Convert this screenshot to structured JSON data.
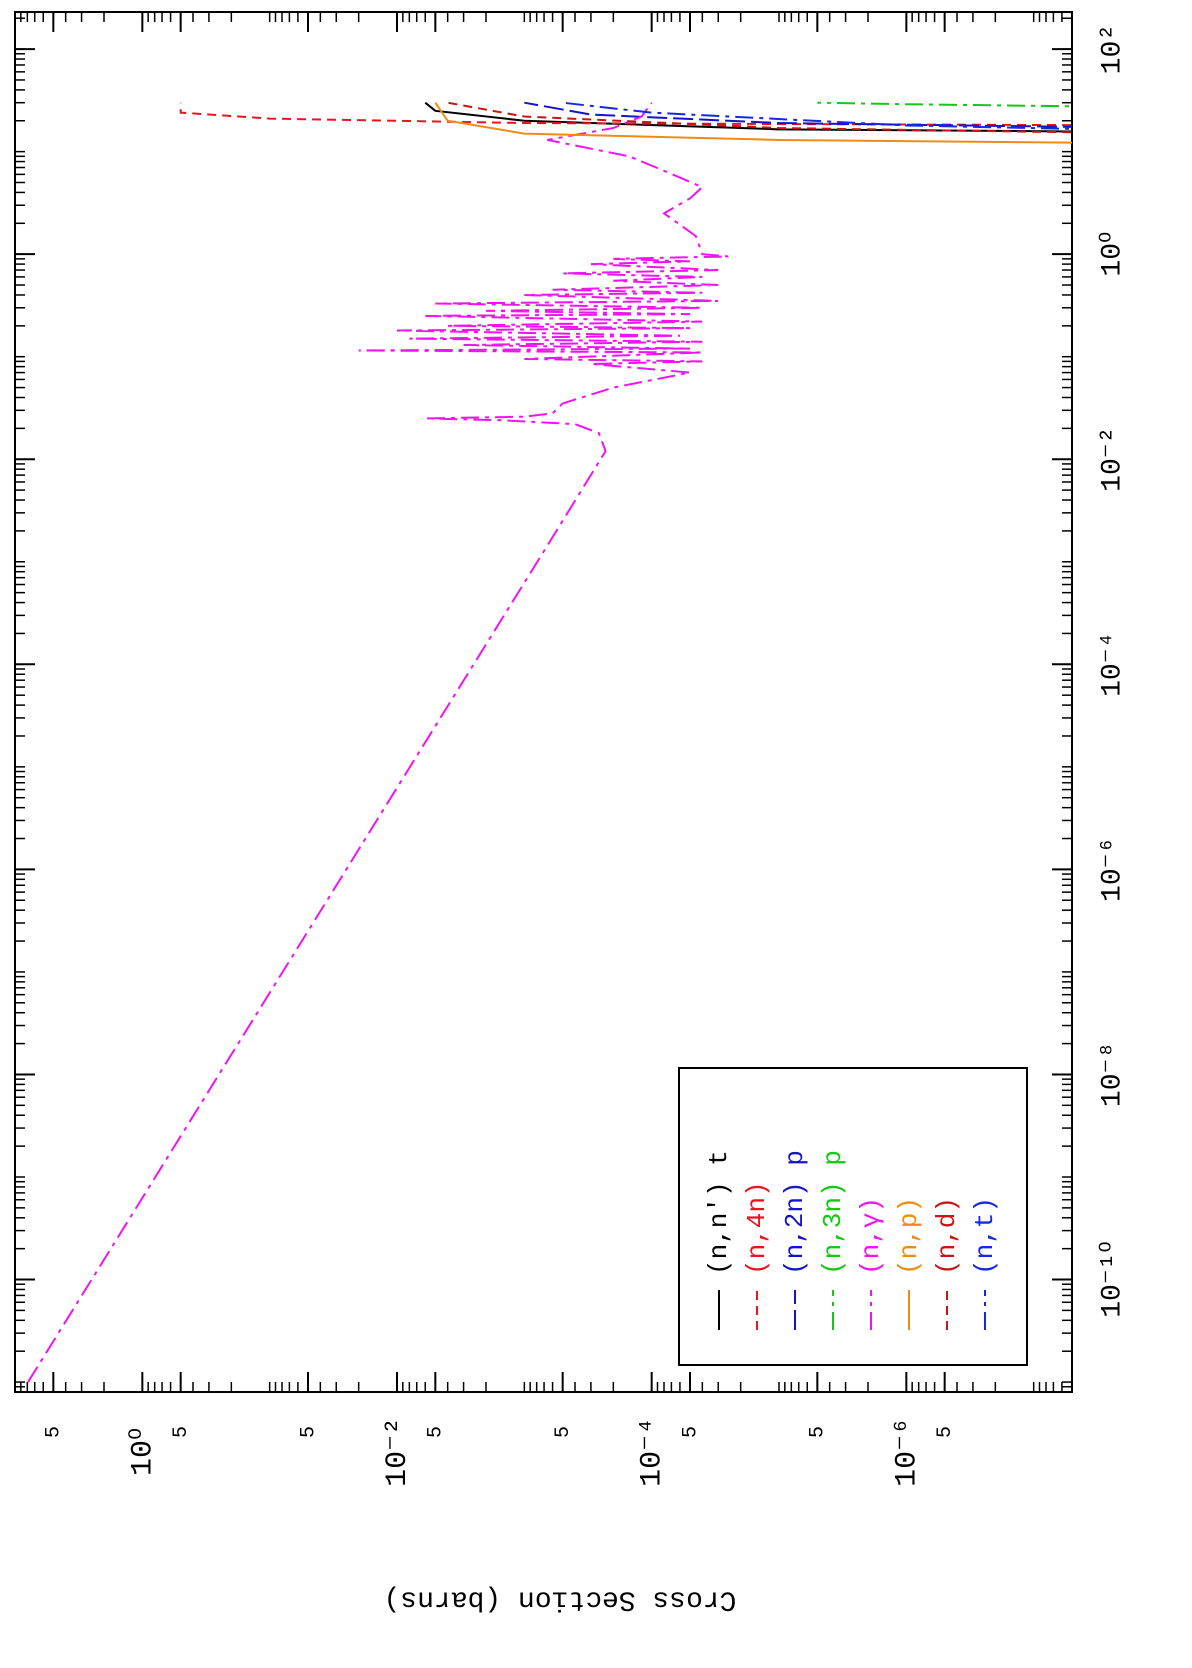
{
  "chart_data": {
    "type": "line",
    "ylabel": "Cross Section (barns)",
    "xlog": true,
    "ylog": true,
    "minor_ticks": true,
    "xlim": [
      8e-12,
      230
    ],
    "ylim": [
      5e-08,
      10
    ],
    "xticks": [
      {
        "value": 1e-10,
        "label": "10⁻¹⁰"
      },
      {
        "value": 1e-08,
        "label": "10⁻⁸"
      },
      {
        "value": 1e-06,
        "label": "10⁻⁶"
      },
      {
        "value": 0.0001,
        "label": "10⁻⁴"
      },
      {
        "value": 0.01,
        "label": "10⁻²"
      },
      {
        "value": 1,
        "label": "10⁰"
      },
      {
        "value": 100,
        "label": "10²"
      }
    ],
    "yticks": [
      5,
      {
        "value": 1,
        "label": "10⁰"
      },
      {
        "value": 0.5,
        "label": "5"
      },
      {
        "value": 0.05,
        "label": "5"
      },
      {
        "value": 0.01,
        "label": "10⁻²"
      },
      {
        "value": 0.005,
        "label": "5"
      },
      {
        "value": 0.0005,
        "label": "5"
      },
      {
        "value": 0.0001,
        "label": "10⁻⁴"
      },
      {
        "value": 5e-05,
        "label": "5"
      },
      {
        "value": 5e-06,
        "label": "5"
      },
      {
        "value": 1e-06,
        "label": "10⁻⁶"
      },
      {
        "value": 5e-07,
        "label": "5"
      }
    ],
    "legend": "lower left",
    "series": [
      {
        "name": "(n,n') t",
        "color": "#000000",
        "style": "solid",
        "x": [
          15.5,
          16.5,
          20,
          25,
          30
        ],
        "values": [
          1e-08,
          1e-05,
          0.001,
          0.005,
          0.006
        ]
      },
      {
        "name": "(n,4n)",
        "color": "#e8141e",
        "style": "dashed",
        "x": [
          18,
          19,
          21,
          24,
          30
        ],
        "values": [
          1e-08,
          0.001,
          0.1,
          0.5,
          0.5
        ]
      },
      {
        "name": "(n,2n) p",
        "color": "#1414c8",
        "style": "longdash",
        "x": [
          17,
          19,
          23,
          30
        ],
        "values": [
          1e-08,
          1e-05,
          0.0003,
          0.001
        ]
      },
      {
        "name": "(n,3n) p",
        "color": "#14c814",
        "style": "dashdot",
        "x": [
          27,
          29,
          30
        ],
        "values": [
          1e-08,
          1e-06,
          5e-06
        ]
      },
      {
        "name": "(n,γ)",
        "color": "#f014f0",
        "style": "dashdot",
        "x": [
          1e-11,
          1e-06,
          0.001,
          0.012,
          0.018,
          0.022,
          0.024,
          0.025,
          0.026,
          0.028,
          0.035,
          0.05,
          0.07,
          0.085,
          0.09,
          0.095,
          0.11,
          0.115,
          0.12,
          0.13,
          0.14,
          0.15,
          0.16,
          0.18,
          0.19,
          0.2,
          0.22,
          0.25,
          0.26,
          0.28,
          0.3,
          0.33,
          0.35,
          0.4,
          0.42,
          0.45,
          0.5,
          0.55,
          0.6,
          0.65,
          0.7,
          0.8,
          0.85,
          0.9,
          0.95,
          1.0,
          1.5,
          2.5,
          3.5,
          4.5,
          6.5,
          9,
          13,
          17,
          22,
          30
        ],
        "values": [
          7.9,
          0.025,
          0.00079,
          0.00023,
          0.00026,
          0.0004,
          0.0015,
          0.006,
          0.001,
          0.0006,
          0.0005,
          0.0002,
          5e-05,
          0.0003,
          4e-05,
          0.001,
          4e-05,
          0.02,
          5e-05,
          0.003,
          4e-05,
          0.008,
          6e-05,
          0.01,
          5e-05,
          0.004,
          4e-05,
          0.006,
          5e-05,
          0.002,
          4e-05,
          0.005,
          3e-05,
          0.001,
          4e-05,
          0.0006,
          3e-05,
          0.0002,
          4e-05,
          0.0005,
          3e-05,
          0.0003,
          5e-05,
          0.0002,
          2.5e-05,
          4e-05,
          4.5e-05,
          8e-05,
          5e-05,
          4e-05,
          8e-05,
          0.00015,
          0.00066,
          0.0002,
          0.00012,
          0.0001
        ]
      },
      {
        "name": "(n,p)",
        "color": "#f08c14",
        "style": "solid",
        "x": [
          12,
          13,
          15,
          20,
          30
        ],
        "values": [
          1e-08,
          1e-05,
          0.001,
          0.004,
          0.005
        ]
      },
      {
        "name": "(n,d)",
        "color": "#c81414",
        "style": "dashed",
        "x": [
          15,
          17,
          22,
          30
        ],
        "values": [
          1e-08,
          1e-05,
          0.001,
          0.004
        ]
      },
      {
        "name": "(n,t)",
        "color": "#1428e6",
        "style": "dashdot",
        "x": [
          16,
          18,
          24,
          30
        ],
        "values": [
          1e-08,
          1e-06,
          0.0001,
          0.0005
        ]
      }
    ]
  }
}
